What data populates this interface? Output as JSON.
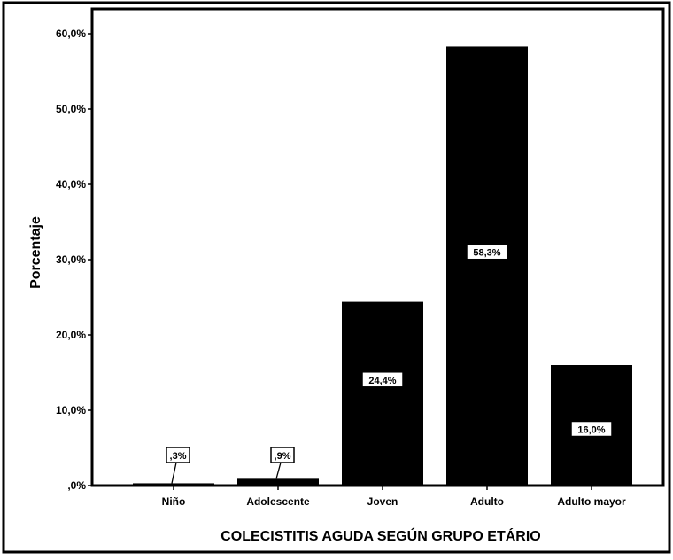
{
  "chart_data": {
    "type": "bar",
    "title": "",
    "xlabel": "COLECISTITIS AGUDA SEGÚN GRUPO ETÁRIO",
    "ylabel": "Porcentaje",
    "categories": [
      "Niño",
      "Adolescente",
      "Joven",
      "Adulto",
      "Adulto mayor"
    ],
    "values": [
      0.3,
      0.9,
      24.4,
      58.3,
      16.0
    ],
    "data_labels": [
      ",3%",
      ",9%",
      "24,4%",
      "58,3%",
      "16,0%"
    ],
    "ylim": [
      0,
      60
    ],
    "yticks": [
      0,
      10,
      20,
      30,
      40,
      50,
      60
    ],
    "ytick_labels": [
      ",0%",
      "10,0%",
      "20,0%",
      "30,0%",
      "40,0%",
      "50,0%",
      "60,0%"
    ],
    "grid": false,
    "legend": "none",
    "bar_color": "#000000"
  }
}
